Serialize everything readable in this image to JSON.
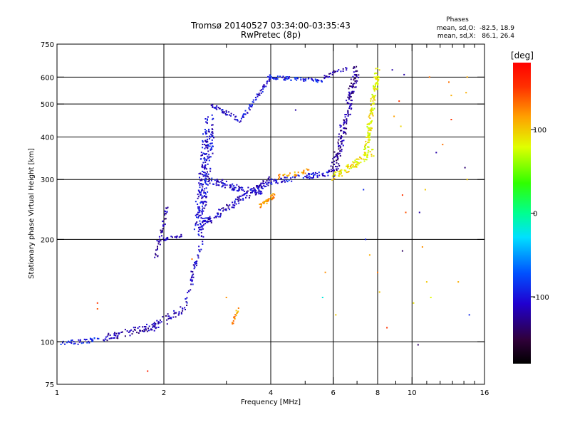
{
  "chart_data": {
    "type": "scatter",
    "title": "Tromsø 20140527 03:34:00-03:35:43",
    "subtitle": "RwPretec (8p)",
    "phases_box": {
      "heading": "Phases",
      "line1": "mean, sd,O:  -82.5, 18.9",
      "line2": "mean, sd,X:   86.1, 26.4"
    },
    "xlabel": "Frequency [MHz]",
    "ylabel": "Stationary phase Virtual Height [km]",
    "x_scale": "log",
    "y_scale": "log",
    "xlim": [
      1,
      16
    ],
    "ylim": [
      75,
      750
    ],
    "x_ticks": [
      1,
      2,
      4,
      6,
      8,
      10,
      16
    ],
    "x_minor_ticks": [
      3,
      5,
      7,
      9,
      11,
      12,
      13,
      14,
      15
    ],
    "y_ticks": [
      75,
      100,
      200,
      300,
      400,
      500,
      600,
      750
    ],
    "grid_x": [
      2,
      4,
      6,
      8,
      10
    ],
    "grid_y": [
      100,
      200,
      300,
      400,
      500,
      600
    ],
    "colorbar": {
      "label": "[deg]",
      "min": -180,
      "max": 180,
      "ticks": [
        100,
        0,
        -100
      ]
    },
    "series": [
      {
        "traces": [
          {
            "f0": 1.0,
            "f1": 1.4,
            "h0": 98,
            "h1": 103,
            "phase": -95,
            "n": 40,
            "spread": 0.035
          },
          {
            "f0": 1.35,
            "f1": 1.9,
            "h0": 102,
            "h1": 112,
            "phase": -120,
            "n": 70,
            "spread": 0.05
          },
          {
            "f0": 1.8,
            "f1": 2.3,
            "h0": 108,
            "h1": 125,
            "phase": -118,
            "n": 50,
            "spread": 0.06
          },
          {
            "f0": 1.9,
            "f1": 2.05,
            "h0": 180,
            "h1": 250,
            "phase": -118,
            "n": 45,
            "spread": 0.05
          },
          {
            "f0": 2.0,
            "f1": 2.25,
            "h0": 200,
            "h1": 205,
            "phase": -115,
            "n": 20,
            "spread": 0.02
          },
          {
            "f0": 2.3,
            "f1": 2.55,
            "h0": 130,
            "h1": 195,
            "phase": -110,
            "n": 45,
            "spread": 0.06
          },
          {
            "f0": 2.5,
            "f1": 2.7,
            "h0": 210,
            "h1": 440,
            "phase": -105,
            "n": 260,
            "spread": 0.16
          },
          {
            "f0": 2.55,
            "f1": 4.0,
            "h0": 220,
            "h1": 300,
            "phase": -112,
            "n": 150,
            "spread": 0.05
          },
          {
            "f0": 2.65,
            "f1": 3.8,
            "h0": 300,
            "h1": 270,
            "phase": -108,
            "n": 90,
            "spread": 0.05
          },
          {
            "f0": 2.7,
            "f1": 3.3,
            "h0": 500,
            "h1": 445,
            "phase": -110,
            "n": 40,
            "spread": 0.03
          },
          {
            "f0": 3.3,
            "f1": 4.0,
            "h0": 450,
            "h1": 600,
            "phase": -105,
            "n": 60,
            "spread": 0.03
          },
          {
            "f0": 3.9,
            "f1": 5.6,
            "h0": 600,
            "h1": 585,
            "phase": -95,
            "n": 70,
            "spread": 0.025
          },
          {
            "f0": 5.6,
            "f1": 6.6,
            "h0": 600,
            "h1": 640,
            "phase": -118,
            "n": 25,
            "spread": 0.03
          },
          {
            "f0": 4.0,
            "f1": 6.0,
            "h0": 295,
            "h1": 315,
            "phase": -100,
            "n": 80,
            "spread": 0.035
          },
          {
            "f0": 6.0,
            "f1": 7.0,
            "h0": 310,
            "h1": 640,
            "phase": -125,
            "n": 180,
            "spread": 0.09
          },
          {
            "f0": 3.7,
            "f1": 4.1,
            "h0": 250,
            "h1": 270,
            "phase": 120,
            "n": 40,
            "spread": 0.03
          },
          {
            "f0": 4.2,
            "f1": 5.2,
            "h0": 305,
            "h1": 320,
            "phase": 115,
            "n": 30,
            "spread": 0.03
          },
          {
            "f0": 6.0,
            "f1": 7.8,
            "h0": 305,
            "h1": 360,
            "phase": 90,
            "n": 90,
            "spread": 0.05
          },
          {
            "f0": 7.4,
            "f1": 8.0,
            "h0": 360,
            "h1": 620,
            "phase": 85,
            "n": 150,
            "spread": 0.07
          },
          {
            "f0": 3.1,
            "f1": 3.25,
            "h0": 112,
            "h1": 125,
            "phase": 120,
            "n": 18,
            "spread": 0.03
          }
        ]
      },
      {
        "scatter": [
          [
            1.3,
            125,
            140
          ],
          [
            1.3,
            130,
            150
          ],
          [
            1.8,
            82,
            160
          ],
          [
            2.4,
            175,
            130
          ],
          [
            3.0,
            135,
            120
          ],
          [
            4.7,
            480,
            -120
          ],
          [
            5.7,
            160,
            120
          ],
          [
            5.6,
            135,
            -20
          ],
          [
            6.1,
            120,
            100
          ],
          [
            7.4,
            200,
            -95
          ],
          [
            7.3,
            280,
            -90
          ],
          [
            7.6,
            180,
            110
          ],
          [
            8.0,
            160,
            130
          ],
          [
            8.1,
            140,
            100
          ],
          [
            8.5,
            110,
            150
          ],
          [
            8.9,
            460,
            115
          ],
          [
            8.8,
            630,
            -120
          ],
          [
            9.3,
            430,
            95
          ],
          [
            9.5,
            610,
            -120
          ],
          [
            9.2,
            510,
            150
          ],
          [
            9.4,
            185,
            -140
          ],
          [
            9.4,
            270,
            150
          ],
          [
            9.6,
            240,
            140
          ],
          [
            10.1,
            130,
            90
          ],
          [
            10.5,
            240,
            -120
          ],
          [
            10.7,
            190,
            120
          ],
          [
            11.0,
            150,
            100
          ],
          [
            11.7,
            360,
            -120
          ],
          [
            11.2,
            600,
            130
          ],
          [
            12.9,
            450,
            150
          ],
          [
            12.7,
            580,
            130
          ],
          [
            12.9,
            530,
            110
          ],
          [
            14.2,
            540,
            110
          ],
          [
            14.3,
            600,
            110
          ],
          [
            14.1,
            325,
            -135
          ],
          [
            14.5,
            120,
            -90
          ],
          [
            14.3,
            300,
            100
          ],
          [
            13.5,
            150,
            110
          ],
          [
            10.9,
            280,
            100
          ],
          [
            11.3,
            135,
            80
          ],
          [
            10.4,
            98,
            -140
          ],
          [
            12.2,
            380,
            130
          ]
        ]
      }
    ]
  }
}
